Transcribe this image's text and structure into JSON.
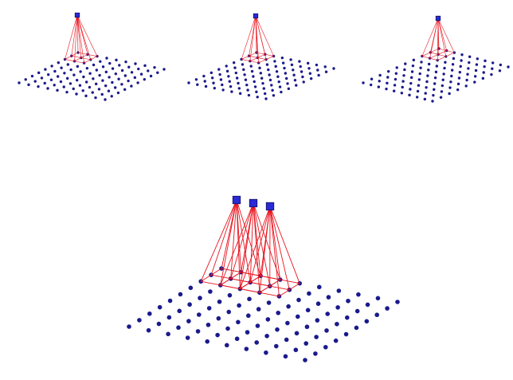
{
  "figure": {
    "grid_size": 10,
    "kernel_size": 3,
    "colors": {
      "background": "#ffffff",
      "grid_node": "#1a1a8c",
      "kernel_line": "#e8141e",
      "output_fill": "#2a2ad6",
      "output_stroke": "#101060"
    },
    "panels": [
      {
        "name": "small-kernel-panel-1",
        "kernel_row": 0,
        "kernel_col": 0,
        "outputs": 1
      },
      {
        "name": "small-kernel-panel-2",
        "kernel_row": 0,
        "kernel_col": 0,
        "outputs": 1
      },
      {
        "name": "small-kernel-panel-3",
        "kernel_row": 0,
        "kernel_col": 0,
        "outputs": 1
      },
      {
        "name": "large-strided-panel",
        "kernel_row": 0,
        "kernel_col": 0,
        "outputs": 3,
        "stride": 1
      }
    ]
  }
}
